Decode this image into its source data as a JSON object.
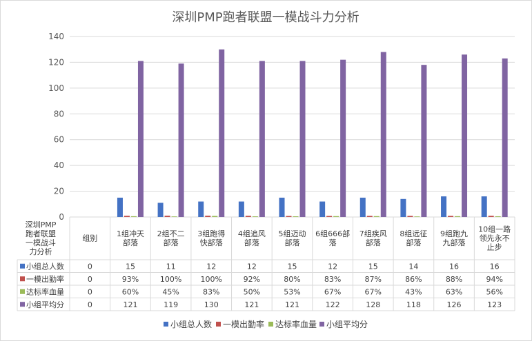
{
  "chart_data": {
    "type": "bar",
    "title": "深圳PMP跑者联盟一模战斗力分析",
    "table_header_label": [
      "深圳PMP",
      "跑者联盟",
      "一模战斗",
      "力分析"
    ],
    "categories": [
      "组别",
      "1组冲天部落",
      "2组不二部落",
      "3组跑得快部落",
      "4组追风部落",
      "5组迈动部落",
      "6组666部落",
      "7组疾风部落",
      "8组远征部落",
      "9组跑九九部落",
      "10组一路领先永不止步"
    ],
    "category_lines": [
      [
        "组别"
      ],
      [
        "1组冲天",
        "部落"
      ],
      [
        "2组不二",
        "部落"
      ],
      [
        "3组跑得",
        "快部落"
      ],
      [
        "4组追风",
        "部落"
      ],
      [
        "5组迈动",
        "部落"
      ],
      [
        "6组666部",
        "落"
      ],
      [
        "7组疾风",
        "部落"
      ],
      [
        "8组远征",
        "部落"
      ],
      [
        "9组跑九",
        "九部落"
      ],
      [
        "10组一路",
        "领先永不",
        "止步"
      ]
    ],
    "ylim": [
      0,
      140
    ],
    "yticks": [
      0,
      20,
      40,
      60,
      80,
      100,
      120,
      140
    ],
    "grid": true,
    "legend_position": "bottom",
    "series": [
      {
        "name": "小组总人数",
        "color": "#4472c4",
        "values": [
          0,
          15,
          11,
          12,
          12,
          15,
          12,
          15,
          14,
          16,
          16
        ],
        "labels": [
          "0",
          "15",
          "11",
          "12",
          "12",
          "15",
          "12",
          "15",
          "14",
          "16",
          "16"
        ]
      },
      {
        "name": "一模出勤率",
        "color": "#c0504d",
        "values": [
          0,
          0.93,
          1.0,
          1.0,
          0.92,
          0.8,
          0.83,
          0.87,
          0.86,
          0.88,
          0.94
        ],
        "labels": [
          "0",
          "93%",
          "100%",
          "100%",
          "92%",
          "80%",
          "83%",
          "87%",
          "86%",
          "88%",
          "94%"
        ]
      },
      {
        "name": "达标率血量",
        "color": "#9bbb59",
        "values": [
          0,
          0.6,
          0.45,
          0.83,
          0.5,
          0.53,
          0.67,
          0.67,
          0.43,
          0.63,
          0.56
        ],
        "labels": [
          "0",
          "60%",
          "45%",
          "83%",
          "50%",
          "53%",
          "67%",
          "67%",
          "43%",
          "63%",
          "56%"
        ]
      },
      {
        "name": "小组平均分",
        "color": "#8064a2",
        "values": [
          0,
          121,
          119,
          130,
          121,
          121,
          122,
          128,
          118,
          126,
          123
        ],
        "labels": [
          "0",
          "121",
          "119",
          "130",
          "121",
          "121",
          "122",
          "128",
          "118",
          "126",
          "123"
        ]
      }
    ]
  }
}
